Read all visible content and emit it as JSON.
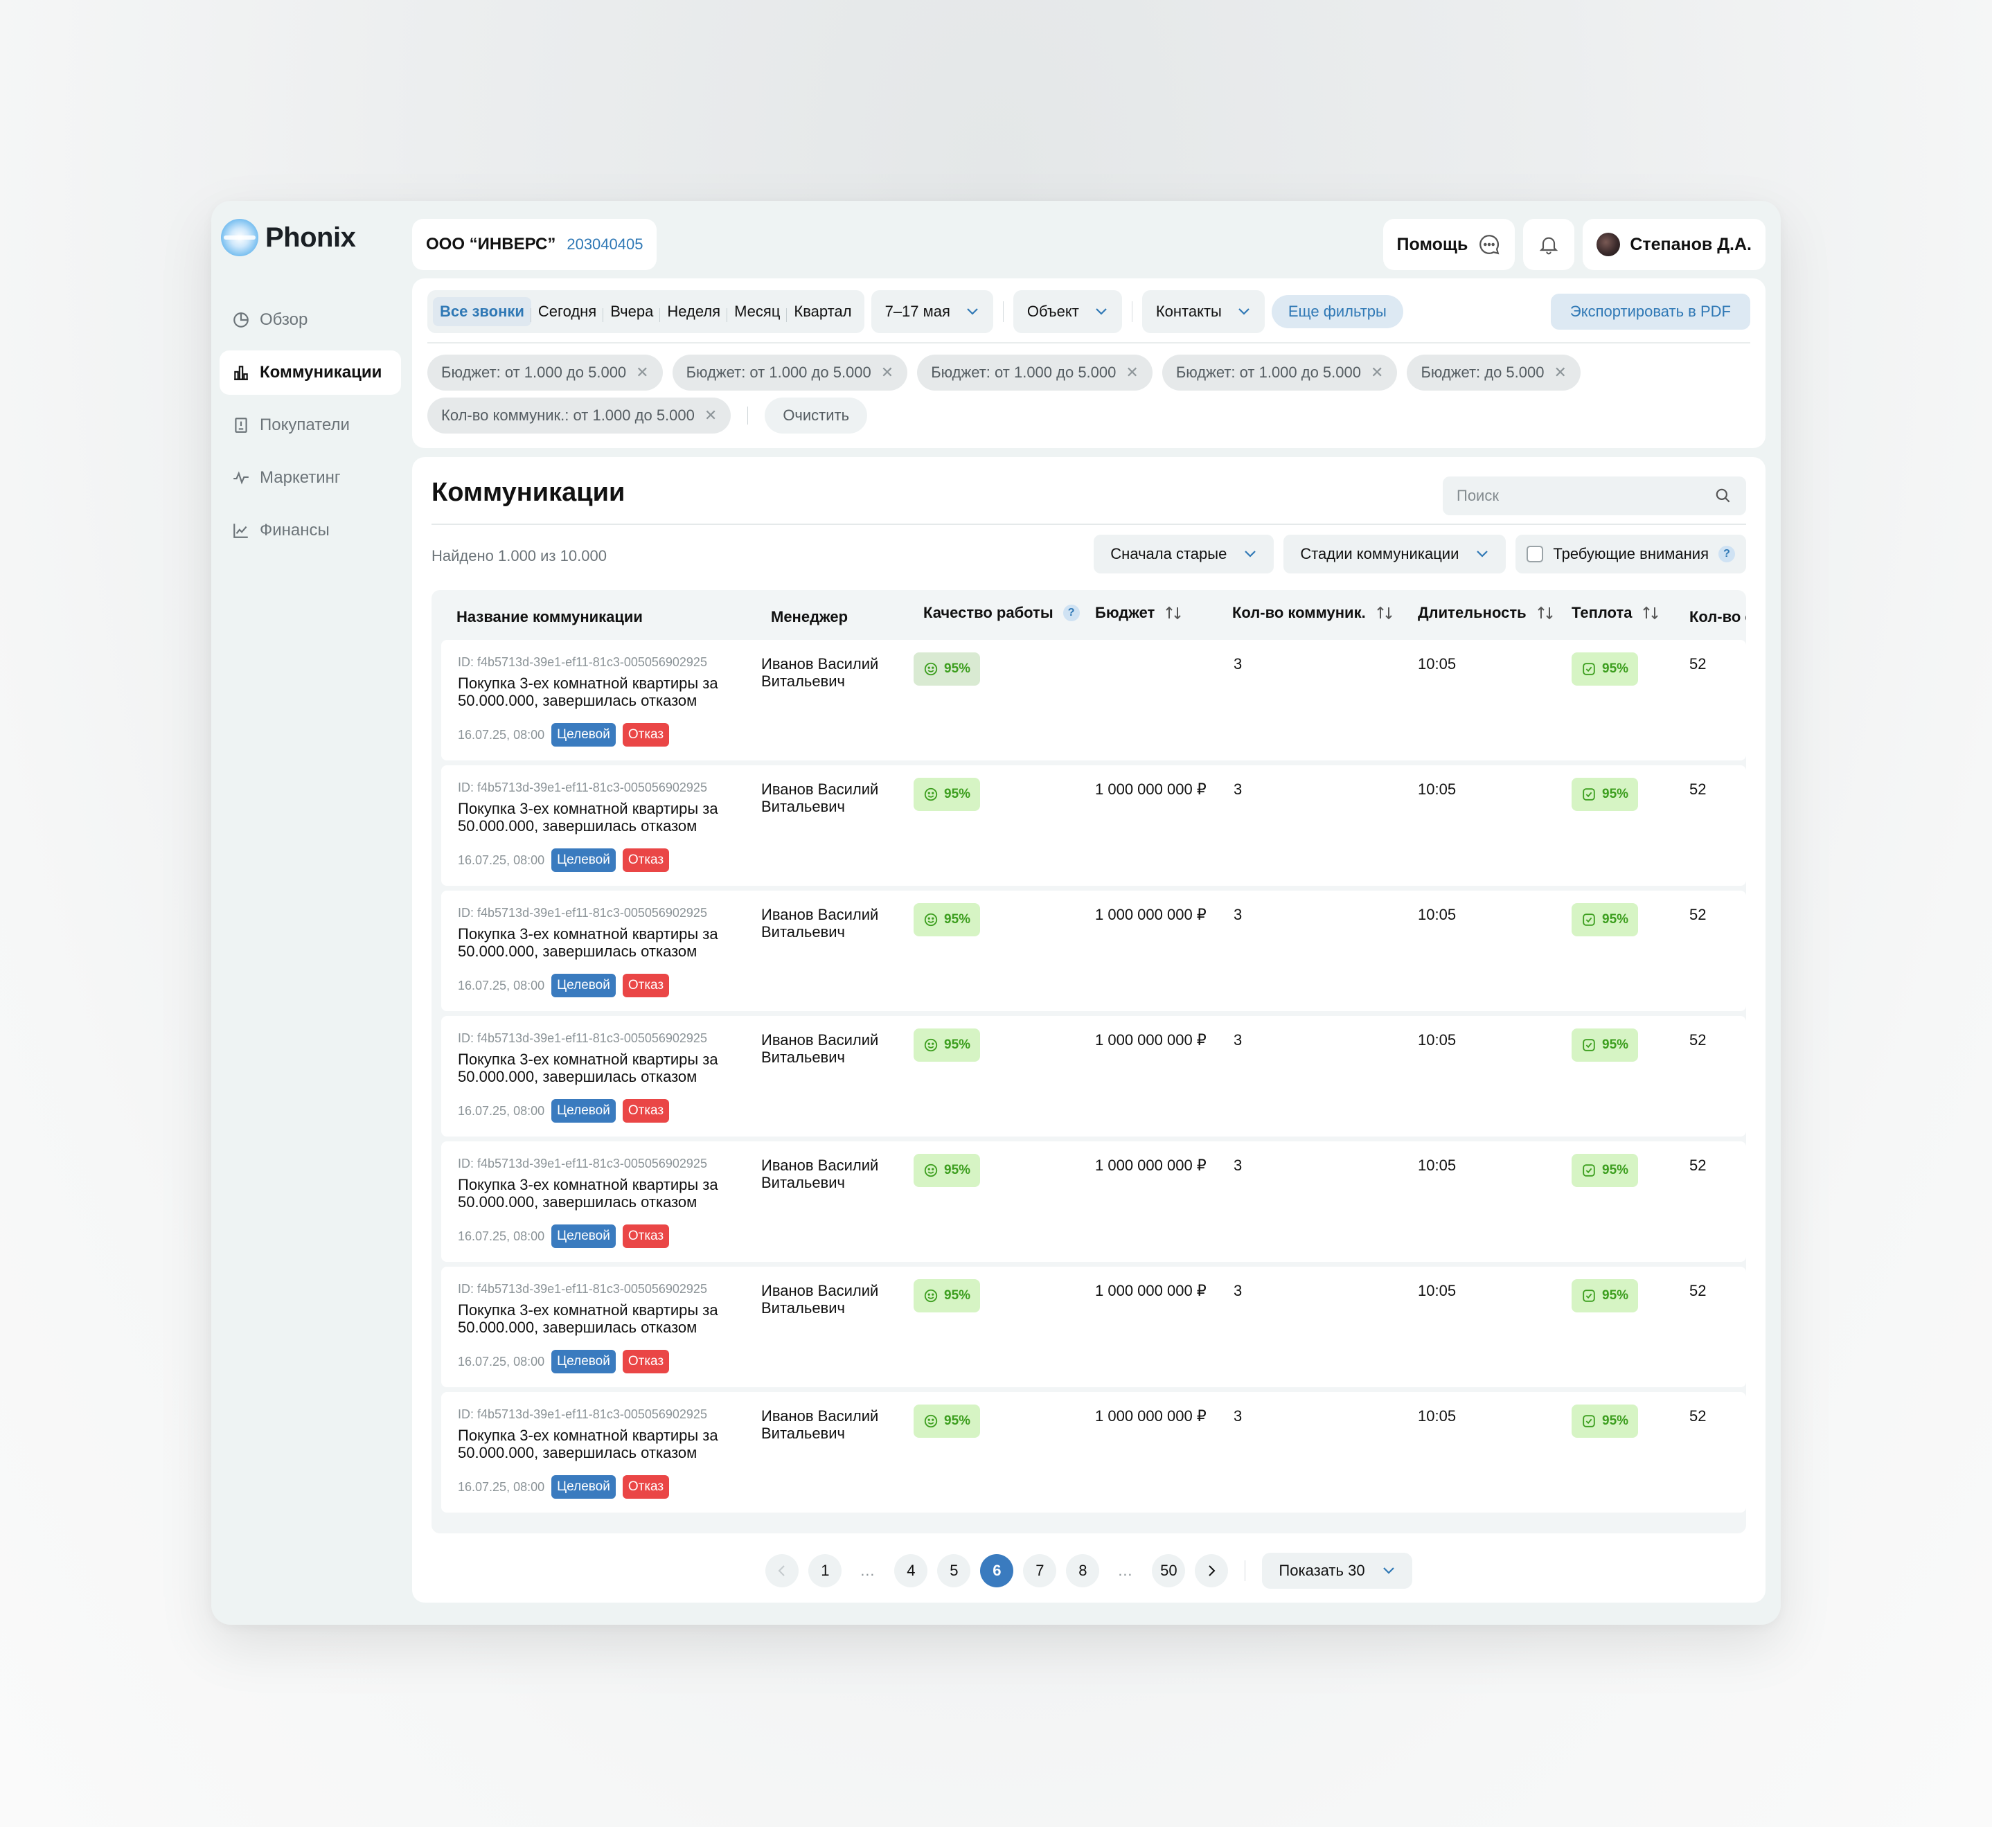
{
  "app": {
    "logo_text": "Phonix"
  },
  "nav": [
    {
      "label": "Обзор",
      "icon": "pie-chart-icon",
      "active": false
    },
    {
      "label": "Коммуникации",
      "icon": "bar-chart-icon",
      "active": true
    },
    {
      "label": "Покупатели",
      "icon": "book-icon",
      "active": false
    },
    {
      "label": "Маркетинг",
      "icon": "pulse-icon",
      "active": false
    },
    {
      "label": "Финансы",
      "icon": "line-chart-icon",
      "active": false
    }
  ],
  "header": {
    "company_name": "ООО “ИНВЕРС”",
    "company_id": "203040405",
    "help_label": "Помощь",
    "user_name": "Степанов Д.А."
  },
  "filters": {
    "periods": [
      "Все звонки",
      "Сегодня",
      "Вчера",
      "Неделя",
      "Месяц",
      "Квартал"
    ],
    "active_period": "Все звонки",
    "date_range": "7–17 мая",
    "object_label": "Объект",
    "contacts_label": "Контакты",
    "more_filters_label": "Еще фильтры",
    "export_label": "Экспортировать в PDF",
    "chips": [
      "Бюджет: от 1.000 до 5.000",
      "Бюджет: от 1.000 до 5.000",
      "Бюджет: от 1.000 до 5.000",
      "Бюджет: от 1.000 до 5.000",
      "Бюджет: до 5.000",
      "Кол-во коммуник.: от 1.000 до 5.000"
    ],
    "clear_label": "Очистить"
  },
  "main": {
    "title": "Коммуникации",
    "search_placeholder": "Поиск",
    "found_text": "Найдено 1.000 из 10.000",
    "sort_label": "Сначала старые",
    "stages_label": "Стадии коммуникации",
    "attention_label": "Требующие внимания"
  },
  "table": {
    "columns": [
      "Название коммуникации",
      "Менеджер",
      "Качество работы",
      "Бюджет",
      "Кол-во коммуник.",
      "Длительность",
      "Теплота",
      "Кол-во с"
    ],
    "rows": [
      {
        "id": "ID: f4b5713d-39e1-ef11-81c3-005056902925",
        "title": "Покупка 3-ех комнатной квартиры за 50.000.000, завершилась отказом",
        "date": "16.07.25, 08:00",
        "tag1": "Целевой",
        "tag2": "Отказ",
        "manager": "Иванов Василий Витальевич",
        "quality": "95%",
        "budget": "",
        "count": "3",
        "duration": "10:05",
        "warmth": "95%",
        "extra": "52"
      },
      {
        "id": "ID: f4b5713d-39e1-ef11-81c3-005056902925",
        "title": "Покупка 3-ех комнатной квартиры за 50.000.000, завершилась отказом",
        "date": "16.07.25, 08:00",
        "tag1": "Целевой",
        "tag2": "Отказ",
        "manager": "Иванов Василий Витальевич",
        "quality": "95%",
        "budget": "1 000 000 000 ₽",
        "count": "3",
        "duration": "10:05",
        "warmth": "95%",
        "extra": "52"
      },
      {
        "id": "ID: f4b5713d-39e1-ef11-81c3-005056902925",
        "title": "Покупка 3-ех комнатной квартиры за 50.000.000, завершилась отказом",
        "date": "16.07.25, 08:00",
        "tag1": "Целевой",
        "tag2": "Отказ",
        "manager": "Иванов Василий Витальевич",
        "quality": "95%",
        "budget": "1 000 000 000 ₽",
        "count": "3",
        "duration": "10:05",
        "warmth": "95%",
        "extra": "52"
      },
      {
        "id": "ID: f4b5713d-39e1-ef11-81c3-005056902925",
        "title": "Покупка 3-ех комнатной квартиры за 50.000.000, завершилась отказом",
        "date": "16.07.25, 08:00",
        "tag1": "Целевой",
        "tag2": "Отказ",
        "manager": "Иванов Василий Витальевич",
        "quality": "95%",
        "budget": "1 000 000 000 ₽",
        "count": "3",
        "duration": "10:05",
        "warmth": "95%",
        "extra": "52"
      },
      {
        "id": "ID: f4b5713d-39e1-ef11-81c3-005056902925",
        "title": "Покупка 3-ех комнатной квартиры за 50.000.000, завершилась отказом",
        "date": "16.07.25, 08:00",
        "tag1": "Целевой",
        "tag2": "Отказ",
        "manager": "Иванов Василий Витальевич",
        "quality": "95%",
        "budget": "1 000 000 000 ₽",
        "count": "3",
        "duration": "10:05",
        "warmth": "95%",
        "extra": "52"
      },
      {
        "id": "ID: f4b5713d-39e1-ef11-81c3-005056902925",
        "title": "Покупка 3-ех комнатной квартиры за 50.000.000, завершилась отказом",
        "date": "16.07.25, 08:00",
        "tag1": "Целевой",
        "tag2": "Отказ",
        "manager": "Иванов Василий Витальевич",
        "quality": "95%",
        "budget": "1 000 000 000 ₽",
        "count": "3",
        "duration": "10:05",
        "warmth": "95%",
        "extra": "52"
      },
      {
        "id": "ID: f4b5713d-39e1-ef11-81c3-005056902925",
        "title": "Покупка 3-ех комнатной квартиры за 50.000.000, завершилась отказом",
        "date": "16.07.25, 08:00",
        "tag1": "Целевой",
        "tag2": "Отказ",
        "manager": "Иванов Василий Витальевич",
        "quality": "95%",
        "budget": "1 000 000 000 ₽",
        "count": "3",
        "duration": "10:05",
        "warmth": "95%",
        "extra": "52"
      }
    ]
  },
  "pagination": {
    "pages": [
      "1",
      "…",
      "4",
      "5",
      "6",
      "7",
      "8",
      "…",
      "50"
    ],
    "current": "6",
    "show_label": "Показать",
    "show_value": "30"
  },
  "colors": {
    "accent": "#3a7bbf",
    "tag_blue": "#3a7bbf",
    "tag_red": "#ea4646",
    "badge_green": "#3c9e1e"
  }
}
